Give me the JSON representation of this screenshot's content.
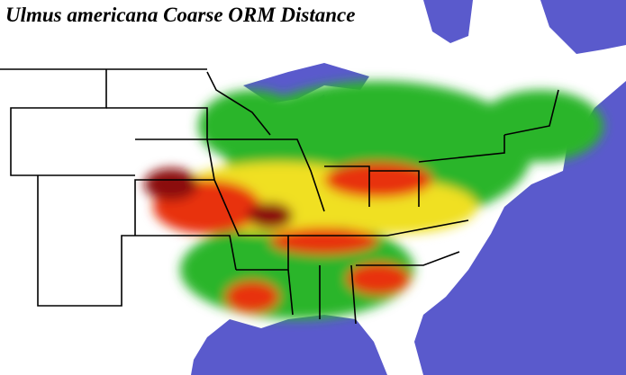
{
  "title": "Ulmus americana Coarse ORM Distance"
}
